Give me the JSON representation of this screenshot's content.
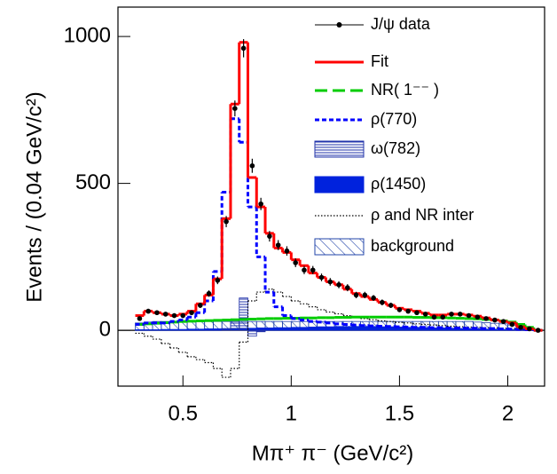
{
  "chart_data": {
    "type": "histogram",
    "x_label": "Mπ⁺ π⁻ (GeV/c²)",
    "y_label": "Events / (0.04 GeV/c²)",
    "xlim": [
      0.2,
      2.17
    ],
    "xticks": [
      0.5,
      1,
      1.5,
      2
    ],
    "ylim": [
      -190,
      1100
    ],
    "yticks": [
      0,
      500,
      1000
    ],
    "bins": [
      0.28,
      0.32,
      0.36,
      0.4,
      0.44,
      0.48,
      0.52,
      0.56,
      0.6,
      0.64,
      0.68,
      0.72,
      0.76,
      0.8,
      0.84,
      0.88,
      0.92,
      0.96,
      1.0,
      1.04,
      1.08,
      1.12,
      1.16,
      1.2,
      1.24,
      1.28,
      1.32,
      1.36,
      1.4,
      1.44,
      1.48,
      1.52,
      1.56,
      1.6,
      1.64,
      1.68,
      1.72,
      1.76,
      1.8,
      1.84,
      1.88,
      1.92,
      1.96,
      2.0,
      2.04,
      2.08,
      2.12,
      2.16
    ],
    "series": [
      {
        "name": "J/ψ data",
        "color": "#000000",
        "style": "points",
        "values": [
          40,
          65,
          60,
          55,
          50,
          50,
          60,
          85,
          125,
          170,
          370,
          755,
          960,
          560,
          430,
          320,
          290,
          270,
          230,
          205,
          205,
          180,
          165,
          155,
          145,
          120,
          120,
          110,
          95,
          85,
          70,
          65,
          60,
          55,
          45,
          45,
          55,
          55,
          50,
          45,
          40,
          35,
          30,
          20,
          10,
          5,
          0
        ],
        "errors": [
          6,
          8,
          8,
          7,
          7,
          7,
          8,
          9,
          11,
          13,
          19,
          27,
          31,
          24,
          21,
          18,
          17,
          16,
          15,
          14,
          14,
          13,
          13,
          12,
          12,
          11,
          11,
          10,
          10,
          9,
          8,
          8,
          8,
          7,
          7,
          7,
          7,
          7,
          7,
          7,
          6,
          6,
          5,
          4,
          3,
          2,
          1
        ]
      },
      {
        "name": "Fit",
        "color": "#ff0000",
        "style": "line",
        "values": [
          50,
          65,
          60,
          55,
          50,
          55,
          65,
          90,
          120,
          175,
          380,
          770,
          980,
          520,
          420,
          330,
          280,
          265,
          240,
          220,
          195,
          180,
          165,
          155,
          140,
          125,
          115,
          105,
          95,
          85,
          75,
          70,
          65,
          58,
          52,
          52,
          55,
          55,
          52,
          48,
          42,
          35,
          30,
          25,
          12,
          5,
          0
        ]
      },
      {
        "name": "NR( 1⁻⁻ )",
        "color": "#00cc00",
        "style": "dashed",
        "values": [
          20,
          22,
          24,
          26,
          28,
          30,
          31,
          32,
          33,
          34,
          35,
          36,
          37,
          38,
          39,
          40,
          40,
          41,
          41,
          42,
          42,
          43,
          43,
          44,
          44,
          45,
          45,
          45,
          45,
          45,
          45,
          45,
          44,
          44,
          43,
          43,
          42,
          41,
          40,
          39,
          37,
          35,
          32,
          28,
          20,
          10,
          0
        ]
      },
      {
        "name": "ρ(770)",
        "color": "#0000ff",
        "style": "dotted-blue",
        "values": [
          20,
          25,
          25,
          25,
          30,
          35,
          45,
          60,
          100,
          200,
          470,
          720,
          640,
          420,
          250,
          130,
          80,
          50,
          40,
          35,
          30,
          28,
          25,
          22,
          20,
          18,
          16,
          15,
          14,
          13,
          12,
          11,
          10,
          10,
          9,
          9,
          8,
          8,
          7,
          7,
          6,
          6,
          5,
          4,
          3,
          2,
          0
        ]
      },
      {
        "name": "ω(782)",
        "color": "#2233aa",
        "style": "hatch-horizontal",
        "values": [
          0,
          0,
          0,
          0,
          0,
          0,
          0,
          0,
          0,
          0,
          5,
          30,
          110,
          -20,
          -5,
          0,
          0,
          0,
          0,
          0,
          0,
          0,
          0,
          0,
          0,
          0,
          0,
          0,
          0,
          0,
          0,
          0,
          0,
          0,
          0,
          0,
          0,
          0,
          0,
          0,
          0,
          0,
          0,
          0,
          0,
          0,
          0
        ]
      },
      {
        "name": "ρ(1450)",
        "color": "#0022dd",
        "style": "solid-fill",
        "values": [
          2,
          2,
          2,
          3,
          3,
          3,
          4,
          4,
          5,
          5,
          6,
          6,
          7,
          7,
          8,
          8,
          9,
          9,
          10,
          10,
          11,
          12,
          12,
          13,
          13,
          13,
          13,
          13,
          12,
          12,
          11,
          10,
          10,
          9,
          8,
          8,
          7,
          6,
          6,
          5,
          4,
          4,
          3,
          2,
          2,
          1,
          0
        ]
      },
      {
        "name": "ρ and NR inter",
        "color": "#000000",
        "style": "dotted",
        "values": [
          -10,
          -20,
          -30,
          -45,
          -60,
          -75,
          -90,
          -100,
          -110,
          -130,
          -160,
          -130,
          -40,
          100,
          130,
          140,
          130,
          115,
          100,
          90,
          80,
          70,
          62,
          56,
          50,
          45,
          40,
          36,
          32,
          30,
          27,
          25,
          22,
          20,
          18,
          16,
          14,
          12,
          11,
          10,
          9,
          8,
          7,
          6,
          4,
          2,
          0
        ]
      },
      {
        "name": "background",
        "color": "#2244aa",
        "style": "hatch-diagonal",
        "values": [
          25,
          28,
          30,
          30,
          30,
          30,
          30,
          30,
          30,
          30,
          30,
          30,
          30,
          30,
          30,
          30,
          30,
          30,
          30,
          30,
          30,
          30,
          30,
          30,
          30,
          30,
          30,
          30,
          30,
          30,
          30,
          30,
          30,
          30,
          30,
          30,
          30,
          30,
          30,
          28,
          26,
          24,
          22,
          18,
          12,
          6,
          0
        ]
      }
    ]
  }
}
